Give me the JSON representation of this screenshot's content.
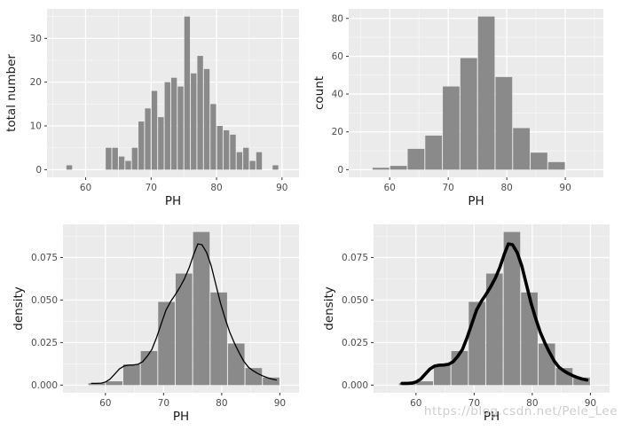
{
  "page": {
    "watermark": "https://blog.csdn.net/Pele_Lee"
  },
  "colors": {
    "background": "#ffffff",
    "panel_bg": "#ebebeb",
    "grid_major": "#ffffff",
    "grid_minor": "#f5f5f5",
    "bar_fill": "#8a8a8a",
    "curve": "#000000",
    "tick_mark": "#333333",
    "tick_label": "#4d4d4d",
    "axis_title": "#1a1a1a"
  },
  "chart_data": [
    {
      "name": "top-left-histogram",
      "type": "bar",
      "subtype": "histogram",
      "title": "",
      "xlabel": "PH",
      "ylabel": "total number",
      "bin_width": 1,
      "bin_centers": [
        57.5,
        63.5,
        64.5,
        65.5,
        66.5,
        67.5,
        68.5,
        69.5,
        70.5,
        71.5,
        72.5,
        73.5,
        74.5,
        75.5,
        76.5,
        77.5,
        78.5,
        79.5,
        80.5,
        81.5,
        82.5,
        83.5,
        84.5,
        85.5,
        86.5,
        89
      ],
      "values": [
        1,
        5,
        5,
        3,
        2,
        5,
        11,
        14,
        18,
        12,
        20,
        21,
        19,
        35,
        22,
        26,
        23,
        15,
        10,
        9,
        8,
        4,
        5,
        2,
        4,
        1
      ],
      "total_n": 300,
      "xlim": [
        54.1,
        92.6
      ],
      "ylim": [
        -1.75,
        36.75
      ],
      "xticks": [
        60,
        70,
        80,
        90
      ],
      "xtick_labels": [
        "60",
        "70",
        "80",
        "90"
      ],
      "yticks": [
        0,
        10,
        20,
        30
      ],
      "ytick_labels": [
        "0",
        "10",
        "20",
        "30"
      ],
      "x_minor": [
        55,
        65,
        75,
        85
      ],
      "y_minor": [
        5,
        15,
        25,
        35
      ],
      "grid": true,
      "legend": "none",
      "curve_x": [],
      "curve_y": [],
      "curve_width": 0
    },
    {
      "name": "top-right-histogram",
      "type": "bar",
      "subtype": "histogram",
      "title": "",
      "xlabel": "PH",
      "ylabel": "count",
      "bin_width": 3,
      "bin_centers": [
        58.5,
        61.5,
        64.5,
        67.5,
        70.5,
        73.5,
        76.5,
        79.5,
        82.5,
        85.5,
        88.5
      ],
      "values": [
        1,
        2,
        11,
        18,
        44,
        59,
        81,
        49,
        22,
        9,
        4
      ],
      "total_n": 300,
      "xlim": [
        53.0,
        96.5
      ],
      "ylim": [
        -4.05,
        85.05
      ],
      "xticks": [
        60,
        70,
        80,
        90
      ],
      "xtick_labels": [
        "60",
        "70",
        "80",
        "90"
      ],
      "yticks": [
        0,
        20,
        40,
        60,
        80
      ],
      "ytick_labels": [
        "0",
        "20",
        "40",
        "60",
        "80"
      ],
      "x_minor": [
        55,
        65,
        75,
        85,
        95
      ],
      "y_minor": [
        10,
        30,
        50,
        70,
        90
      ],
      "grid": true,
      "legend": "none",
      "curve_x": [],
      "curve_y": [],
      "curve_width": 0
    },
    {
      "name": "bottom-left-density-histogram",
      "type": "bar",
      "subtype": "histogram-with-density-line",
      "title": "",
      "xlabel": "PH",
      "ylabel": "density",
      "bin_width": 3,
      "bin_centers": [
        58.5,
        61.5,
        64.5,
        67.5,
        70.5,
        73.5,
        76.5,
        79.5,
        82.5,
        85.5,
        88.5
      ],
      "values": [
        0.00111,
        0.00222,
        0.01222,
        0.02,
        0.04889,
        0.06556,
        0.09,
        0.05444,
        0.02444,
        0.01,
        0.00444
      ],
      "total_n": 300,
      "xlim": [
        52.7,
        93.3
      ],
      "ylim": [
        -0.0045,
        0.0945
      ],
      "xticks": [
        60,
        70,
        80,
        90
      ],
      "xtick_labels": [
        "60",
        "70",
        "80",
        "90"
      ],
      "yticks": [
        0,
        0.025,
        0.05,
        0.075
      ],
      "ytick_labels": [
        "0.000",
        "0.025",
        "0.050",
        "0.075"
      ],
      "x_minor": [
        55,
        65,
        75,
        85,
        95
      ],
      "y_minor": [
        0.0125,
        0.0375,
        0.0625,
        0.0875
      ],
      "grid": true,
      "legend": "none",
      "curve_x": [
        57.6,
        58.5,
        59.3,
        60,
        60.8,
        61.6,
        62.4,
        63.2,
        64,
        64.8,
        65.6,
        66.4,
        67.2,
        68,
        68.8,
        69.6,
        70.4,
        71.2,
        72,
        72.8,
        73.6,
        74.4,
        75.2,
        75.9,
        76.6,
        77.4,
        78.2,
        79,
        79.8,
        80.6,
        81.4,
        82.2,
        83,
        83.8,
        84.6,
        85.4,
        86.2,
        87,
        87.8,
        88.6,
        89.4
      ],
      "curve_y": [
        0.001,
        0.001,
        0.0012,
        0.0018,
        0.0035,
        0.0065,
        0.0095,
        0.0112,
        0.0117,
        0.0118,
        0.0122,
        0.0138,
        0.017,
        0.021,
        0.028,
        0.036,
        0.044,
        0.049,
        0.053,
        0.0575,
        0.0625,
        0.069,
        0.077,
        0.083,
        0.0825,
        0.078,
        0.07,
        0.059,
        0.048,
        0.039,
        0.031,
        0.0245,
        0.019,
        0.014,
        0.0105,
        0.0085,
        0.0068,
        0.0055,
        0.0044,
        0.0036,
        0.003
      ],
      "curve_width": 1.3
    },
    {
      "name": "bottom-right-density-histogram",
      "type": "bar",
      "subtype": "histogram-with-thick-density-line",
      "title": "",
      "xlabel": "PH",
      "ylabel": "density",
      "bin_width": 3,
      "bin_centers": [
        58.5,
        61.5,
        64.5,
        67.5,
        70.5,
        73.5,
        76.5,
        79.5,
        82.5,
        85.5,
        88.5
      ],
      "values": [
        0.00111,
        0.00222,
        0.01222,
        0.02,
        0.04889,
        0.06556,
        0.09,
        0.05444,
        0.02444,
        0.01,
        0.00444
      ],
      "total_n": 300,
      "xlim": [
        52.7,
        93.3
      ],
      "ylim": [
        -0.0045,
        0.0945
      ],
      "xticks": [
        60,
        70,
        80,
        90
      ],
      "xtick_labels": [
        "60",
        "70",
        "80",
        "90"
      ],
      "yticks": [
        0,
        0.025,
        0.05,
        0.075
      ],
      "ytick_labels": [
        "0.000",
        "0.025",
        "0.050",
        "0.075"
      ],
      "x_minor": [
        55,
        65,
        75,
        85,
        95
      ],
      "y_minor": [
        0.0125,
        0.0375,
        0.0625,
        0.0875
      ],
      "grid": true,
      "legend": "none",
      "curve_x": [
        57.6,
        58.5,
        59.3,
        60,
        60.8,
        61.6,
        62.4,
        63.2,
        64,
        64.8,
        65.6,
        66.4,
        67.2,
        68,
        68.8,
        69.6,
        70.4,
        71.2,
        72,
        72.8,
        73.6,
        74.4,
        75.2,
        75.9,
        76.6,
        77.4,
        78.2,
        79,
        79.8,
        80.6,
        81.4,
        82.2,
        83,
        83.8,
        84.6,
        85.4,
        86.2,
        87,
        87.8,
        88.6,
        89.4
      ],
      "curve_y": [
        0.001,
        0.001,
        0.0012,
        0.0018,
        0.0035,
        0.0065,
        0.0095,
        0.0112,
        0.0117,
        0.0118,
        0.0122,
        0.0138,
        0.017,
        0.021,
        0.028,
        0.036,
        0.044,
        0.049,
        0.053,
        0.0575,
        0.0625,
        0.069,
        0.077,
        0.083,
        0.0825,
        0.078,
        0.07,
        0.059,
        0.048,
        0.039,
        0.031,
        0.0245,
        0.019,
        0.014,
        0.0105,
        0.0085,
        0.0068,
        0.0055,
        0.0044,
        0.0036,
        0.003
      ],
      "curve_width": 3.6
    }
  ]
}
